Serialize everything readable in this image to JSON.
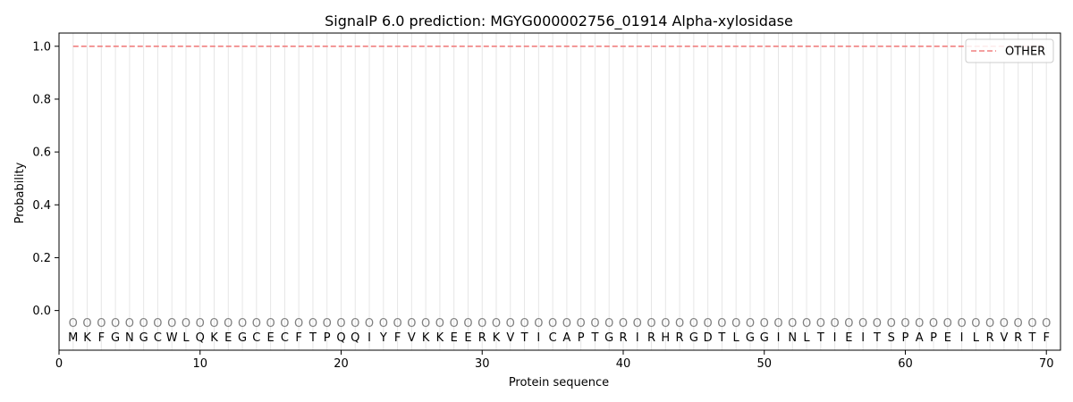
{
  "chart_data": {
    "type": "line",
    "title": "SignalP 6.0 prediction: MGYG000002756_01914 Alpha-xylosidase",
    "xlabel": "Protein sequence",
    "ylabel": "Probability",
    "xlim": [
      0,
      71
    ],
    "ylim": [
      -0.15,
      1.05
    ],
    "xticks": [
      0,
      10,
      20,
      30,
      40,
      50,
      60,
      70
    ],
    "yticks": [
      0.0,
      0.2,
      0.4,
      0.6,
      0.8,
      1.0
    ],
    "sequence": [
      "M",
      "K",
      "F",
      "G",
      "N",
      "G",
      "C",
      "W",
      "L",
      "Q",
      "K",
      "E",
      "G",
      "C",
      "E",
      "C",
      "F",
      "T",
      "P",
      "Q",
      "Q",
      "I",
      "Y",
      "F",
      "V",
      "K",
      "K",
      "E",
      "E",
      "R",
      "K",
      "V",
      "T",
      "I",
      "C",
      "A",
      "P",
      "T",
      "G",
      "R",
      "I",
      "R",
      "H",
      "R",
      "G",
      "D",
      "T",
      "L",
      "G",
      "G",
      "I",
      "N",
      "L",
      "T",
      "I",
      "E",
      "I",
      "T",
      "S",
      "P",
      "A",
      "P",
      "E",
      "I",
      "L",
      "R",
      "V",
      "R",
      "T",
      "F"
    ],
    "predicted_label": "O",
    "series": [
      {
        "name": "OTHER",
        "color": "#f08080",
        "style": "dashed",
        "x_start": 1,
        "x_end": 70,
        "value": 1.0
      }
    ],
    "legend_position": "top-right",
    "grid": "vertical"
  }
}
